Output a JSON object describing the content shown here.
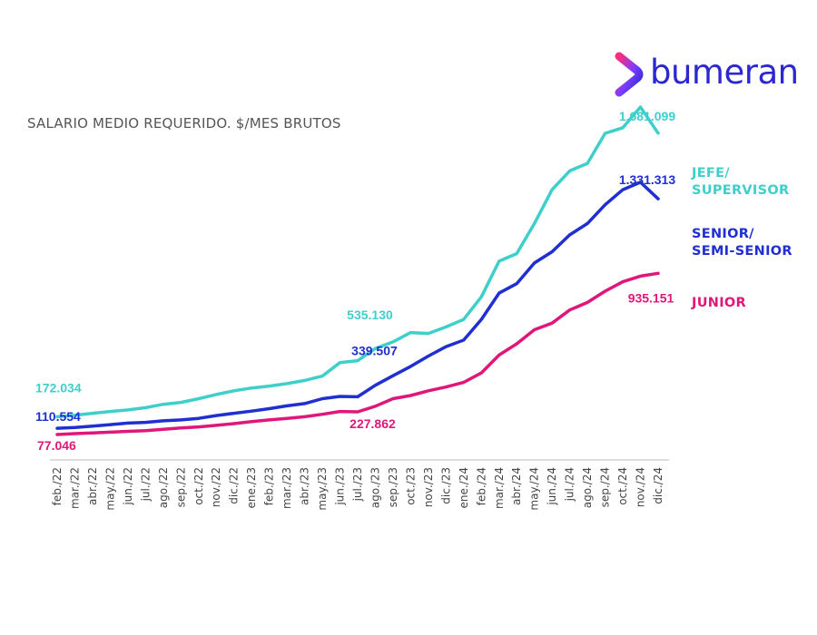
{
  "brand": {
    "name": "bumeran"
  },
  "colors": {
    "jefe": "#3fcfcb",
    "senior": "#1f2fd0",
    "junior": "#e0177a",
    "brand": "#2b27d1",
    "axis": "#bbbbbb"
  },
  "chart_data": {
    "type": "line",
    "title": "SALARIO MEDIO REQUERIDO. $/MES BRUTOS",
    "xlabel": "",
    "ylabel": "",
    "ylim": [
      0,
      2100000
    ],
    "categories": [
      "feb./22",
      "mar./22",
      "abr./22",
      "may./22",
      "jun./22",
      "jul./22",
      "ago./22",
      "sep./22",
      "oct./22",
      "nov./22",
      "dic./22",
      "ene./23",
      "feb./23",
      "mar./23",
      "abr./23",
      "may./23",
      "jun./23",
      "jul./23",
      "ago./23",
      "sep./23",
      "oct./23",
      "nov./23",
      "dic./23",
      "ene./24",
      "feb./24",
      "mar./24",
      "abr./24",
      "may./24",
      "jun./24",
      "jul./24",
      "ago./24",
      "sep./24",
      "oct./24",
      "nov./24",
      "dic./24"
    ],
    "series": [
      {
        "name": "JEFE/ SUPERVISOR",
        "legend_lines": [
          "JEFE/",
          "SUPERVISOR"
        ],
        "color": "#3fcfcb",
        "values": [
          172034,
          180000,
          190000,
          200000,
          208000,
          220000,
          238000,
          248000,
          268000,
          290000,
          310000,
          325000,
          335000,
          348000,
          365000,
          388000,
          460000,
          470000,
          535130,
          570000,
          620000,
          615000,
          650000,
          690000,
          810000,
          1000000,
          1040000,
          1200000,
          1380000,
          1480000,
          1520000,
          1680000,
          1710000,
          1820000,
          1681099
        ],
        "labels": [
          {
            "index": 0,
            "text": "172.034"
          },
          {
            "index": 18,
            "text": "535.130"
          },
          {
            "index": 34,
            "text": "1.681.099"
          }
        ]
      },
      {
        "name": "SENIOR/ SEMI-SENIOR",
        "legend_lines": [
          "SENIOR/",
          "SEMI-SENIOR"
        ],
        "color": "#1f2fd0",
        "values": [
          110554,
          115000,
          122000,
          130000,
          138000,
          142000,
          150000,
          155000,
          163000,
          178000,
          190000,
          202000,
          215000,
          230000,
          242000,
          268000,
          280000,
          278000,
          339507,
          390000,
          440000,
          495000,
          545000,
          580000,
          690000,
          830000,
          880000,
          990000,
          1050000,
          1140000,
          1200000,
          1300000,
          1380000,
          1420000,
          1331313
        ],
        "labels": [
          {
            "index": 0,
            "text": "110.554"
          },
          {
            "index": 18,
            "text": "339.507"
          },
          {
            "index": 34,
            "text": "1.331.313"
          }
        ]
      },
      {
        "name": "JUNIOR",
        "legend_lines": [
          "JUNIOR"
        ],
        "color": "#e0177a",
        "values": [
          77046,
          82000,
          86000,
          90000,
          94000,
          98000,
          105000,
          112000,
          118000,
          126000,
          135000,
          146000,
          155000,
          163000,
          172000,
          185000,
          200000,
          198000,
          227862,
          268000,
          285000,
          310000,
          330000,
          355000,
          405000,
          500000,
          560000,
          635000,
          670000,
          740000,
          780000,
          840000,
          890000,
          920000,
          935151
        ],
        "labels": [
          {
            "index": 0,
            "text": "77.046"
          },
          {
            "index": 18,
            "text": "227.862"
          },
          {
            "index": 34,
            "text": "935.151"
          }
        ]
      }
    ]
  }
}
